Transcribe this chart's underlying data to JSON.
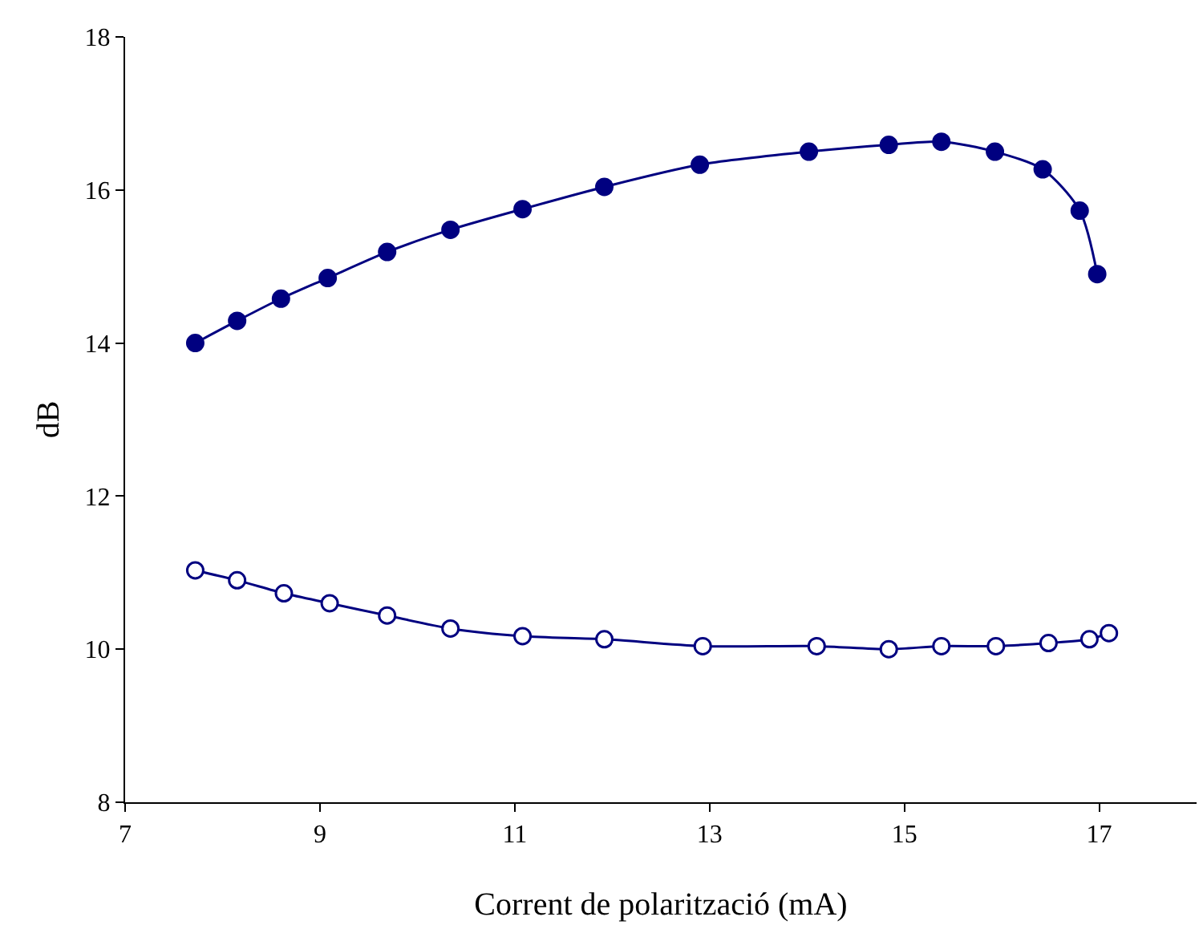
{
  "chart_data": {
    "type": "line",
    "xlabel": "Corrent de polarització (mA)",
    "ylabel": "dB",
    "xlim": [
      7,
      18
    ],
    "xticks": [
      7,
      9,
      11,
      13,
      15,
      17
    ],
    "ylim": [
      8,
      18
    ],
    "yticks": [
      8,
      10,
      12,
      14,
      16,
      18
    ],
    "grid": false,
    "marker": "circle",
    "line_style": "solid",
    "series": [
      {
        "color": "#000080",
        "x": [
          7.72,
          8.15,
          8.6,
          9.08,
          9.69,
          10.34,
          11.08,
          11.92,
          12.9,
          14.02,
          14.84,
          15.38,
          15.93,
          16.42,
          16.8,
          16.98
        ],
        "values": [
          14.0,
          14.29,
          14.58,
          14.85,
          15.19,
          15.48,
          15.75,
          16.04,
          16.33,
          16.5,
          16.59,
          16.63,
          16.5,
          16.27,
          15.73,
          14.9
        ]
      },
      {
        "color": "#000080",
        "x": [
          7.72,
          8.15,
          8.63,
          9.1,
          9.69,
          10.34,
          11.08,
          11.92,
          12.93,
          14.1,
          14.84,
          15.38,
          15.94,
          16.48,
          16.9,
          17.1
        ],
        "values": [
          11.03,
          10.9,
          10.73,
          10.6,
          10.44,
          10.27,
          10.17,
          10.13,
          10.04,
          10.04,
          10.0,
          10.04,
          10.04,
          10.08,
          10.13,
          10.21
        ]
      }
    ]
  }
}
